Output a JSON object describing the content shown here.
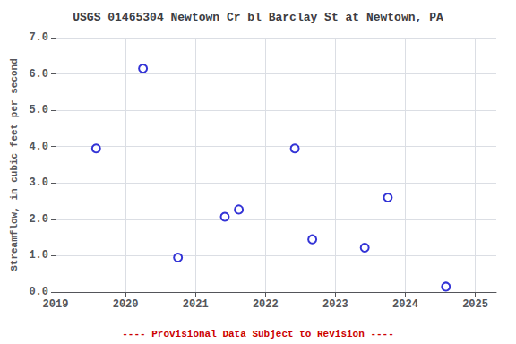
{
  "chart_data": {
    "type": "scatter",
    "title": "USGS 01465304 Newtown Cr bl Barclay St at Newtown, PA",
    "ylabel": "Streamflow, in cubic feet per second",
    "annotations": [
      {
        "text": "---- Provisional Data Subject to Revision ----",
        "color": "#cc0000"
      }
    ],
    "x": [
      2019.58,
      2020.25,
      2020.75,
      2021.42,
      2021.62,
      2022.42,
      2022.67,
      2023.42,
      2023.75,
      2024.58
    ],
    "values": [
      3.95,
      6.15,
      0.95,
      2.07,
      2.27,
      3.95,
      1.45,
      1.22,
      2.6,
      0.15
    ],
    "color": "#0000cc",
    "marker": "circle",
    "xlim": [
      2019.0,
      2025.3
    ],
    "xticks": [
      2019,
      2020,
      2021,
      2022,
      2023,
      2024,
      2025
    ],
    "ylim": [
      0.0,
      7.0
    ],
    "yticks": [
      {
        "value": 0.0,
        "label": "0.0"
      },
      {
        "value": 1.0,
        "label": "1.0"
      },
      {
        "value": 2.0,
        "label": "2.0"
      },
      {
        "value": 3.0,
        "label": "3.0"
      },
      {
        "value": 4.0,
        "label": "4.0"
      },
      {
        "value": 5.0,
        "label": "5.0"
      },
      {
        "value": 6.0,
        "label": "6.0"
      },
      {
        "value": 7.0,
        "label": "7.0"
      }
    ],
    "grid": true
  }
}
